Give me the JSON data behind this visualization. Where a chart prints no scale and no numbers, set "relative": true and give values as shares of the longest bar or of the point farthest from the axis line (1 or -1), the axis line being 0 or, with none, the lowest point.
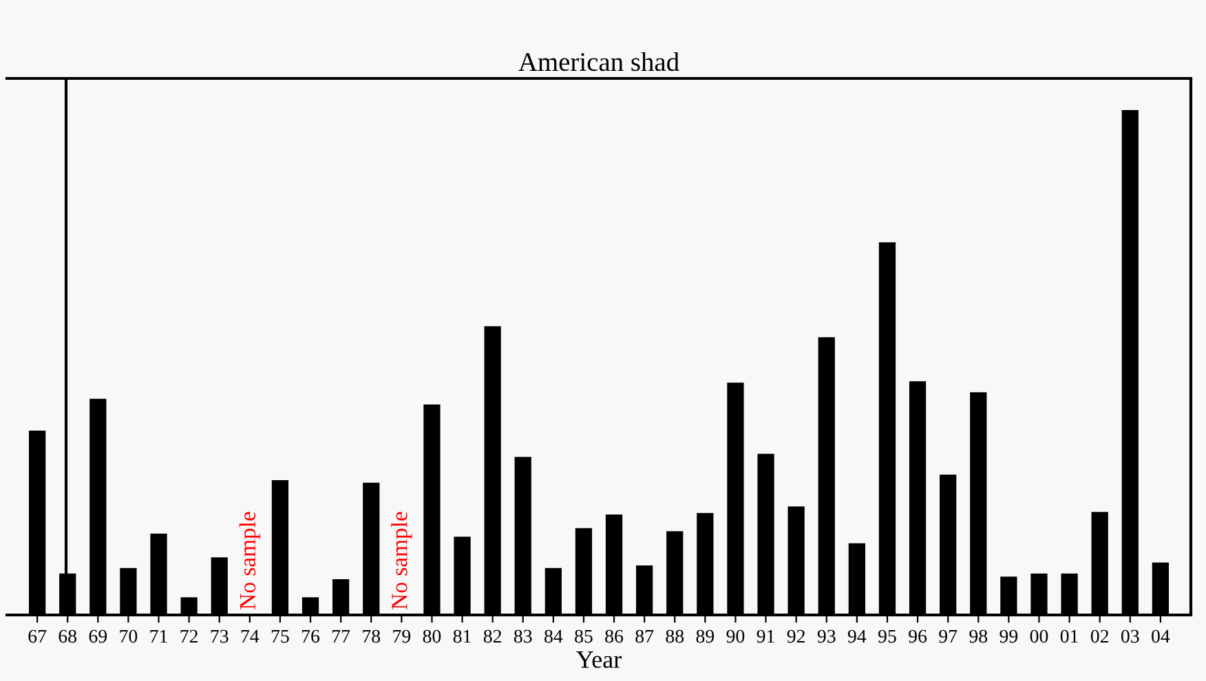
{
  "chart_data": {
    "type": "bar",
    "title": "American shad",
    "xlabel": "Year",
    "relative": true,
    "color": "#000000",
    "categories": [
      "67",
      "68",
      "69",
      "70",
      "71",
      "72",
      "73",
      "74",
      "75",
      "76",
      "77",
      "78",
      "79",
      "80",
      "81",
      "82",
      "83",
      "84",
      "85",
      "86",
      "87",
      "88",
      "89",
      "90",
      "91",
      "92",
      "93",
      "94",
      "95",
      "96",
      "97",
      "98",
      "99",
      "00",
      "01",
      "02",
      "03",
      "04"
    ],
    "values": [
      0.365,
      0.082,
      0.428,
      0.093,
      0.161,
      0.035,
      0.114,
      null,
      0.267,
      0.035,
      0.071,
      0.262,
      null,
      0.417,
      0.155,
      0.572,
      0.313,
      0.093,
      0.172,
      0.199,
      0.098,
      0.166,
      0.202,
      0.46,
      0.319,
      0.215,
      0.55,
      0.142,
      0.738,
      0.463,
      0.278,
      0.441,
      0.076,
      0.082,
      0.082,
      0.204,
      1,
      0.104
    ],
    "annotations": [
      "No sample",
      "No sample"
    ]
  }
}
